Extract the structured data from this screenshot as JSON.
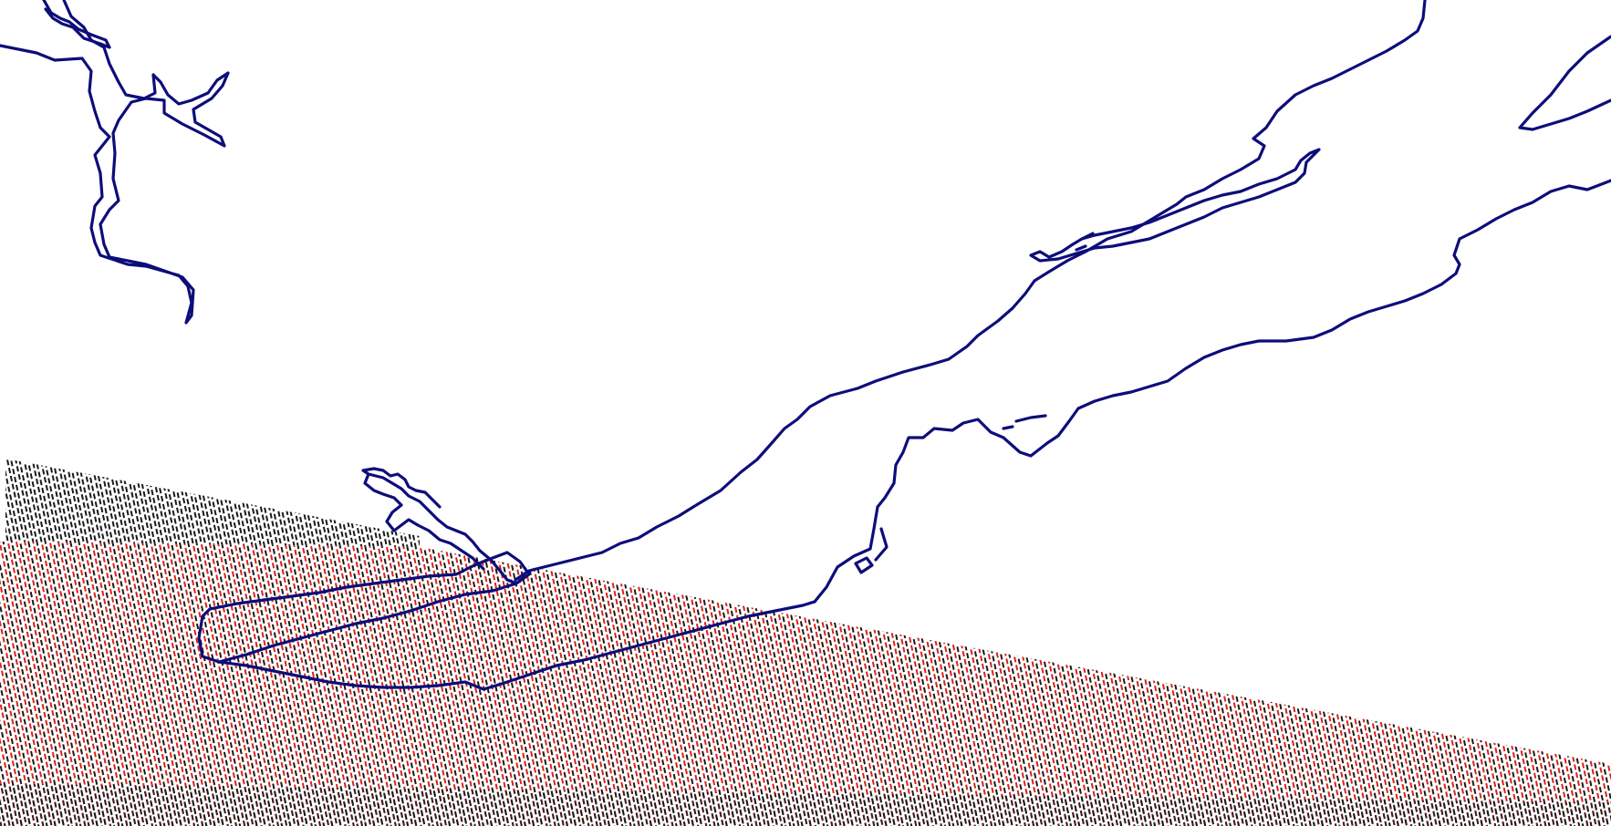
{
  "map": {
    "background_color": "#ffffff",
    "coastline_color": "#0d0d7a",
    "footprint_dot_colors": {
      "black": "#1a1a1a",
      "red": "#e0201a"
    }
  }
}
